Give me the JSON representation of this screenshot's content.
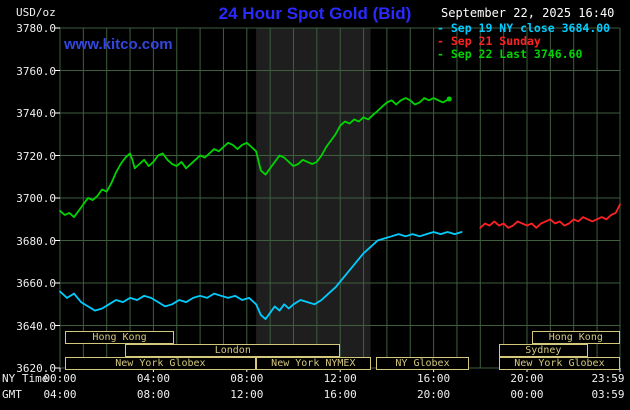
{
  "header": {
    "unit_label": "USD/oz",
    "title": "24 Hour Spot Gold (Bid)",
    "datetime": "September 22, 2025 16:40"
  },
  "watermark": "www.kitco.com",
  "axes": {
    "ny_time_label": "NY Time",
    "gmt_label": "GMT",
    "y_tick_labels": [
      "3780.0",
      "3760.0",
      "3740.0",
      "3720.0",
      "3700.0",
      "3680.0",
      "3660.0",
      "3640.0",
      "3620.0"
    ],
    "y_tick_values": [
      3780,
      3760,
      3740,
      3720,
      3700,
      3680,
      3660,
      3640,
      3620
    ],
    "x_tick_hours": [
      0,
      4,
      8,
      12,
      16,
      20,
      23.983
    ],
    "x_tick_labels_ny": [
      "00:00",
      "04:00",
      "08:00",
      "12:00",
      "16:00",
      "20:00",
      "23:59"
    ],
    "x_tick_labels_gmt": [
      "04:00",
      "08:00",
      "12:00",
      "16:00",
      "20:00",
      "00:00",
      "03:59"
    ]
  },
  "colors": {
    "background": "#000000",
    "title_blue": "#2a2aff",
    "watermark_blue": "#3347e0",
    "grid_green": "#3e5e3e",
    "axis_text": "#f0f0f0",
    "tick_white": "#ffffff",
    "session_tan": "#d4c87c",
    "band_gray": "#1e1e1e",
    "cyan": "#00ccff",
    "red": "#ff2222",
    "green": "#00d500"
  },
  "legend": [
    {
      "label": "- Sep 19 NY close 3684.00",
      "color": "#00ccff"
    },
    {
      "label": "- Sep 21 Sunday",
      "color": "#ff2222"
    },
    {
      "label": "- Sep 22 Last 3746.60",
      "color": "#00d500"
    }
  ],
  "chart_data": {
    "type": "line",
    "title": "24 Hour Spot Gold (Bid)",
    "xlabel": "NY Time",
    "xlabel_secondary": "GMT",
    "ylabel": "USD/oz",
    "xlim_hours": [
      0,
      23.983
    ],
    "ylim": [
      3620,
      3780
    ],
    "grid": true,
    "legend_position": "top-right",
    "shaded_band_hours": [
      8.4,
      13.3
    ],
    "last_datetime": "September 22, 2025 16:40",
    "last_value": 3746.6,
    "prior_close_value": 3684.0,
    "series": [
      {
        "name": "Sep 19 NY close 3684.00",
        "color": "#00ccff",
        "points": [
          [
            0,
            3656
          ],
          [
            0.3,
            3653
          ],
          [
            0.6,
            3655
          ],
          [
            0.9,
            3651
          ],
          [
            1.2,
            3649
          ],
          [
            1.5,
            3647
          ],
          [
            1.8,
            3648
          ],
          [
            2.1,
            3650
          ],
          [
            2.4,
            3652
          ],
          [
            2.7,
            3651
          ],
          [
            3.0,
            3653
          ],
          [
            3.3,
            3652
          ],
          [
            3.6,
            3654
          ],
          [
            3.9,
            3653
          ],
          [
            4.2,
            3651
          ],
          [
            4.5,
            3649
          ],
          [
            4.8,
            3650
          ],
          [
            5.1,
            3652
          ],
          [
            5.4,
            3651
          ],
          [
            5.7,
            3653
          ],
          [
            6.0,
            3654
          ],
          [
            6.3,
            3653
          ],
          [
            6.6,
            3655
          ],
          [
            6.9,
            3654
          ],
          [
            7.2,
            3653
          ],
          [
            7.5,
            3654
          ],
          [
            7.8,
            3652
          ],
          [
            8.1,
            3653
          ],
          [
            8.4,
            3650
          ],
          [
            8.6,
            3645
          ],
          [
            8.8,
            3643
          ],
          [
            9.0,
            3646
          ],
          [
            9.2,
            3649
          ],
          [
            9.4,
            3647
          ],
          [
            9.6,
            3650
          ],
          [
            9.8,
            3648
          ],
          [
            10.0,
            3650
          ],
          [
            10.3,
            3652
          ],
          [
            10.6,
            3651
          ],
          [
            10.9,
            3650
          ],
          [
            11.2,
            3652
          ],
          [
            11.5,
            3655
          ],
          [
            11.8,
            3658
          ],
          [
            12.1,
            3662
          ],
          [
            12.4,
            3666
          ],
          [
            12.7,
            3670
          ],
          [
            13.0,
            3674
          ],
          [
            13.3,
            3677
          ],
          [
            13.6,
            3680
          ],
          [
            13.9,
            3681
          ],
          [
            14.2,
            3682
          ],
          [
            14.5,
            3683
          ],
          [
            14.8,
            3682
          ],
          [
            15.1,
            3683
          ],
          [
            15.4,
            3682
          ],
          [
            15.7,
            3683
          ],
          [
            16.0,
            3684
          ],
          [
            16.3,
            3683
          ],
          [
            16.6,
            3684
          ],
          [
            16.9,
            3683
          ],
          [
            17.2,
            3684
          ]
        ]
      },
      {
        "name": "Sep 21 Sunday",
        "color": "#ff2222",
        "points": [
          [
            18.0,
            3686
          ],
          [
            18.2,
            3688
          ],
          [
            18.4,
            3687
          ],
          [
            18.6,
            3689
          ],
          [
            18.8,
            3687
          ],
          [
            19.0,
            3688
          ],
          [
            19.2,
            3686
          ],
          [
            19.4,
            3687
          ],
          [
            19.6,
            3689
          ],
          [
            19.8,
            3688
          ],
          [
            20.0,
            3687
          ],
          [
            20.2,
            3688
          ],
          [
            20.4,
            3686
          ],
          [
            20.6,
            3688
          ],
          [
            20.8,
            3689
          ],
          [
            21.0,
            3690
          ],
          [
            21.2,
            3688
          ],
          [
            21.4,
            3689
          ],
          [
            21.6,
            3687
          ],
          [
            21.8,
            3688
          ],
          [
            22.0,
            3690
          ],
          [
            22.2,
            3689
          ],
          [
            22.4,
            3691
          ],
          [
            22.6,
            3690
          ],
          [
            22.8,
            3689
          ],
          [
            23.0,
            3690
          ],
          [
            23.2,
            3691
          ],
          [
            23.4,
            3690
          ],
          [
            23.6,
            3692
          ],
          [
            23.8,
            3693
          ],
          [
            23.983,
            3697
          ]
        ]
      },
      {
        "name": "Sep 22 Last 3746.60",
        "color": "#00d500",
        "points": [
          [
            0,
            3694
          ],
          [
            0.2,
            3692
          ],
          [
            0.4,
            3693
          ],
          [
            0.6,
            3691
          ],
          [
            0.8,
            3694
          ],
          [
            1.0,
            3697
          ],
          [
            1.2,
            3700
          ],
          [
            1.4,
            3699
          ],
          [
            1.6,
            3701
          ],
          [
            1.8,
            3704
          ],
          [
            2.0,
            3703
          ],
          [
            2.2,
            3707
          ],
          [
            2.4,
            3712
          ],
          [
            2.6,
            3716
          ],
          [
            2.8,
            3719
          ],
          [
            3.0,
            3721
          ],
          [
            3.1,
            3718
          ],
          [
            3.2,
            3714
          ],
          [
            3.4,
            3716
          ],
          [
            3.6,
            3718
          ],
          [
            3.8,
            3715
          ],
          [
            4.0,
            3717
          ],
          [
            4.2,
            3720
          ],
          [
            4.4,
            3721
          ],
          [
            4.6,
            3718
          ],
          [
            4.8,
            3716
          ],
          [
            5.0,
            3715
          ],
          [
            5.2,
            3717
          ],
          [
            5.4,
            3714
          ],
          [
            5.6,
            3716
          ],
          [
            5.8,
            3718
          ],
          [
            6.0,
            3720
          ],
          [
            6.2,
            3719
          ],
          [
            6.4,
            3721
          ],
          [
            6.6,
            3723
          ],
          [
            6.8,
            3722
          ],
          [
            7.0,
            3724
          ],
          [
            7.2,
            3726
          ],
          [
            7.4,
            3725
          ],
          [
            7.6,
            3723
          ],
          [
            7.8,
            3725
          ],
          [
            8.0,
            3726
          ],
          [
            8.2,
            3724
          ],
          [
            8.4,
            3722
          ],
          [
            8.6,
            3713
          ],
          [
            8.8,
            3711
          ],
          [
            9.0,
            3714
          ],
          [
            9.2,
            3717
          ],
          [
            9.4,
            3720
          ],
          [
            9.6,
            3719
          ],
          [
            9.8,
            3717
          ],
          [
            10.0,
            3715
          ],
          [
            10.2,
            3716
          ],
          [
            10.4,
            3718
          ],
          [
            10.6,
            3717
          ],
          [
            10.8,
            3716
          ],
          [
            11.0,
            3717
          ],
          [
            11.2,
            3720
          ],
          [
            11.4,
            3724
          ],
          [
            11.6,
            3727
          ],
          [
            11.8,
            3730
          ],
          [
            12.0,
            3734
          ],
          [
            12.2,
            3736
          ],
          [
            12.4,
            3735
          ],
          [
            12.6,
            3737
          ],
          [
            12.8,
            3736
          ],
          [
            13.0,
            3738
          ],
          [
            13.2,
            3737
          ],
          [
            13.4,
            3739
          ],
          [
            13.6,
            3741
          ],
          [
            13.8,
            3743
          ],
          [
            14.0,
            3745
          ],
          [
            14.2,
            3746
          ],
          [
            14.4,
            3744
          ],
          [
            14.6,
            3746
          ],
          [
            14.8,
            3747
          ],
          [
            15.0,
            3746
          ],
          [
            15.2,
            3744
          ],
          [
            15.4,
            3745
          ],
          [
            15.6,
            3747
          ],
          [
            15.8,
            3746
          ],
          [
            16.0,
            3747
          ],
          [
            16.2,
            3746
          ],
          [
            16.4,
            3745
          ],
          [
            16.67,
            3746.6
          ]
        ]
      }
    ],
    "market_sessions": [
      {
        "row": 0,
        "start": 0.2,
        "end": 4.9,
        "label": "Hong Kong"
      },
      {
        "row": 0,
        "start": 20.2,
        "end": 23.98,
        "label": "Hong Kong"
      },
      {
        "row": 1,
        "start": 2.8,
        "end": 12.0,
        "label": "London"
      },
      {
        "row": 1,
        "start": 18.8,
        "end": 22.6,
        "label": "Sydney"
      },
      {
        "row": 2,
        "start": 0.2,
        "end": 8.4,
        "label": "New York Globex"
      },
      {
        "row": 2,
        "start": 8.4,
        "end": 13.3,
        "label": "New York NYMEX"
      },
      {
        "row": 2,
        "start": 13.55,
        "end": 17.5,
        "label": "NY Globex"
      },
      {
        "row": 2,
        "start": 18.8,
        "end": 23.98,
        "label": "New York Globex"
      }
    ]
  }
}
